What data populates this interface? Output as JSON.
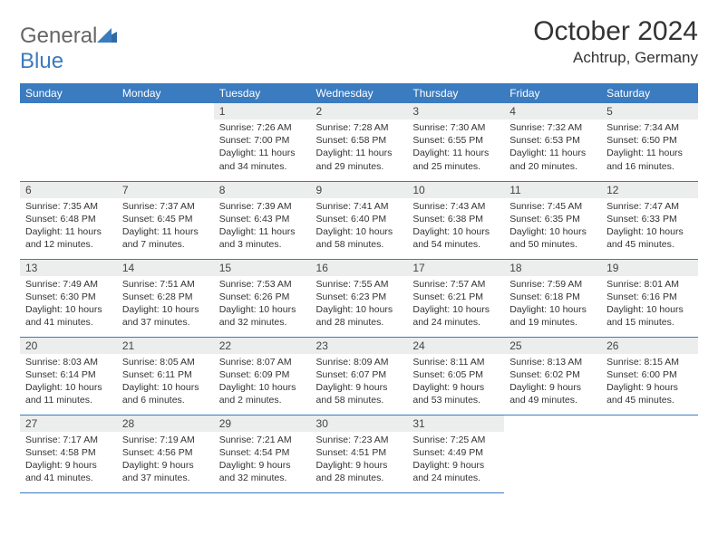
{
  "brand": {
    "part1": "General",
    "part2": "Blue"
  },
  "title": "October 2024",
  "location": "Achtrup, Germany",
  "colors": {
    "header_bg": "#3b7bbf",
    "header_text": "#ffffff",
    "daynum_bg": "#eceded",
    "row_border": "#3b7bbf",
    "body_text": "#333333"
  },
  "weekdays": [
    "Sunday",
    "Monday",
    "Tuesday",
    "Wednesday",
    "Thursday",
    "Friday",
    "Saturday"
  ],
  "leading_blanks": 2,
  "days": [
    {
      "n": "1",
      "sunrise": "7:26 AM",
      "sunset": "7:00 PM",
      "daylight": "11 hours and 34 minutes."
    },
    {
      "n": "2",
      "sunrise": "7:28 AM",
      "sunset": "6:58 PM",
      "daylight": "11 hours and 29 minutes."
    },
    {
      "n": "3",
      "sunrise": "7:30 AM",
      "sunset": "6:55 PM",
      "daylight": "11 hours and 25 minutes."
    },
    {
      "n": "4",
      "sunrise": "7:32 AM",
      "sunset": "6:53 PM",
      "daylight": "11 hours and 20 minutes."
    },
    {
      "n": "5",
      "sunrise": "7:34 AM",
      "sunset": "6:50 PM",
      "daylight": "11 hours and 16 minutes."
    },
    {
      "n": "6",
      "sunrise": "7:35 AM",
      "sunset": "6:48 PM",
      "daylight": "11 hours and 12 minutes."
    },
    {
      "n": "7",
      "sunrise": "7:37 AM",
      "sunset": "6:45 PM",
      "daylight": "11 hours and 7 minutes."
    },
    {
      "n": "8",
      "sunrise": "7:39 AM",
      "sunset": "6:43 PM",
      "daylight": "11 hours and 3 minutes."
    },
    {
      "n": "9",
      "sunrise": "7:41 AM",
      "sunset": "6:40 PM",
      "daylight": "10 hours and 58 minutes."
    },
    {
      "n": "10",
      "sunrise": "7:43 AM",
      "sunset": "6:38 PM",
      "daylight": "10 hours and 54 minutes."
    },
    {
      "n": "11",
      "sunrise": "7:45 AM",
      "sunset": "6:35 PM",
      "daylight": "10 hours and 50 minutes."
    },
    {
      "n": "12",
      "sunrise": "7:47 AM",
      "sunset": "6:33 PM",
      "daylight": "10 hours and 45 minutes."
    },
    {
      "n": "13",
      "sunrise": "7:49 AM",
      "sunset": "6:30 PM",
      "daylight": "10 hours and 41 minutes."
    },
    {
      "n": "14",
      "sunrise": "7:51 AM",
      "sunset": "6:28 PM",
      "daylight": "10 hours and 37 minutes."
    },
    {
      "n": "15",
      "sunrise": "7:53 AM",
      "sunset": "6:26 PM",
      "daylight": "10 hours and 32 minutes."
    },
    {
      "n": "16",
      "sunrise": "7:55 AM",
      "sunset": "6:23 PM",
      "daylight": "10 hours and 28 minutes."
    },
    {
      "n": "17",
      "sunrise": "7:57 AM",
      "sunset": "6:21 PM",
      "daylight": "10 hours and 24 minutes."
    },
    {
      "n": "18",
      "sunrise": "7:59 AM",
      "sunset": "6:18 PM",
      "daylight": "10 hours and 19 minutes."
    },
    {
      "n": "19",
      "sunrise": "8:01 AM",
      "sunset": "6:16 PM",
      "daylight": "10 hours and 15 minutes."
    },
    {
      "n": "20",
      "sunrise": "8:03 AM",
      "sunset": "6:14 PM",
      "daylight": "10 hours and 11 minutes."
    },
    {
      "n": "21",
      "sunrise": "8:05 AM",
      "sunset": "6:11 PM",
      "daylight": "10 hours and 6 minutes."
    },
    {
      "n": "22",
      "sunrise": "8:07 AM",
      "sunset": "6:09 PM",
      "daylight": "10 hours and 2 minutes."
    },
    {
      "n": "23",
      "sunrise": "8:09 AM",
      "sunset": "6:07 PM",
      "daylight": "9 hours and 58 minutes."
    },
    {
      "n": "24",
      "sunrise": "8:11 AM",
      "sunset": "6:05 PM",
      "daylight": "9 hours and 53 minutes."
    },
    {
      "n": "25",
      "sunrise": "8:13 AM",
      "sunset": "6:02 PM",
      "daylight": "9 hours and 49 minutes."
    },
    {
      "n": "26",
      "sunrise": "8:15 AM",
      "sunset": "6:00 PM",
      "daylight": "9 hours and 45 minutes."
    },
    {
      "n": "27",
      "sunrise": "7:17 AM",
      "sunset": "4:58 PM",
      "daylight": "9 hours and 41 minutes."
    },
    {
      "n": "28",
      "sunrise": "7:19 AM",
      "sunset": "4:56 PM",
      "daylight": "9 hours and 37 minutes."
    },
    {
      "n": "29",
      "sunrise": "7:21 AM",
      "sunset": "4:54 PM",
      "daylight": "9 hours and 32 minutes."
    },
    {
      "n": "30",
      "sunrise": "7:23 AM",
      "sunset": "4:51 PM",
      "daylight": "9 hours and 28 minutes."
    },
    {
      "n": "31",
      "sunrise": "7:25 AM",
      "sunset": "4:49 PM",
      "daylight": "9 hours and 24 minutes."
    }
  ],
  "labels": {
    "sunrise": "Sunrise:",
    "sunset": "Sunset:",
    "daylight": "Daylight:"
  }
}
